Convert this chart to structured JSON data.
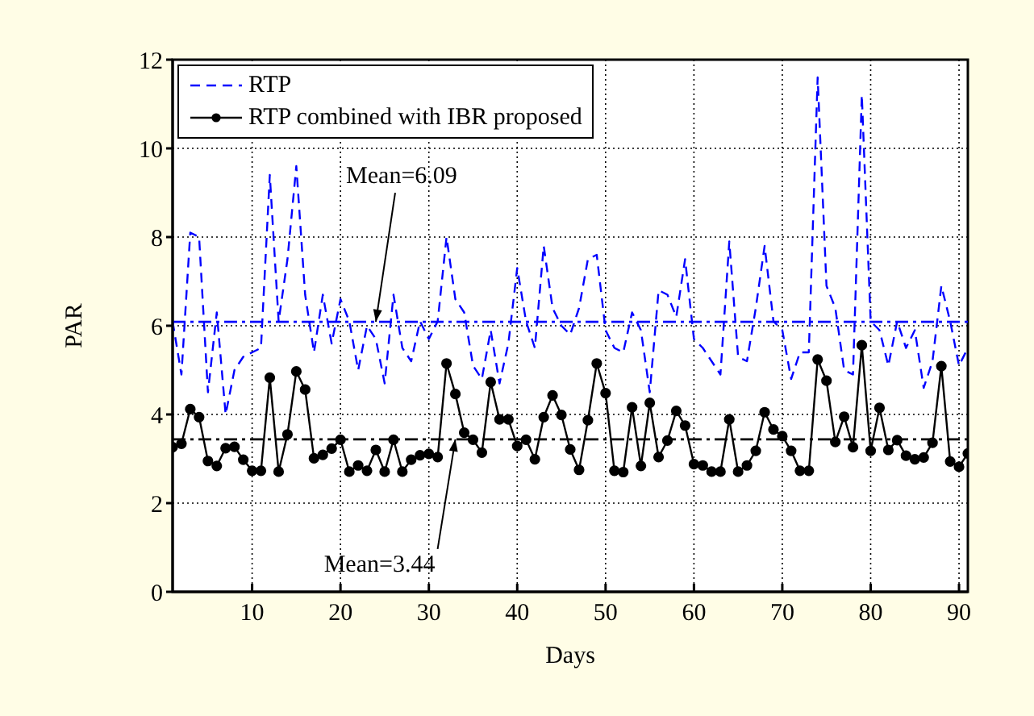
{
  "chart_data": {
    "type": "line",
    "xlabel": "Days",
    "ylabel": "PAR",
    "x": [
      1,
      2,
      3,
      4,
      5,
      6,
      7,
      8,
      9,
      10,
      11,
      12,
      13,
      14,
      15,
      16,
      17,
      18,
      19,
      20,
      21,
      22,
      23,
      24,
      25,
      26,
      27,
      28,
      29,
      30,
      31,
      32,
      33,
      34,
      35,
      36,
      37,
      38,
      39,
      40,
      41,
      42,
      43,
      44,
      45,
      46,
      47,
      48,
      49,
      50,
      51,
      52,
      53,
      54,
      55,
      56,
      57,
      58,
      59,
      60,
      61,
      62,
      63,
      64,
      65,
      66,
      67,
      68,
      69,
      70,
      71,
      72,
      73,
      74,
      75,
      76,
      77,
      78,
      79,
      80,
      81,
      82,
      83,
      84,
      85,
      86,
      87,
      88,
      89,
      90,
      91
    ],
    "series": [
      {
        "name": "RTP",
        "color": "#0000ff",
        "line_style": "dashed",
        "marker": "none",
        "values": [
          6.1,
          4.9,
          8.1,
          8.0,
          4.5,
          6.3,
          4.0,
          5.0,
          5.3,
          5.4,
          5.5,
          9.4,
          6.1,
          7.5,
          9.6,
          6.7,
          5.4,
          6.7,
          5.6,
          6.6,
          6.1,
          5.0,
          6.0,
          5.7,
          4.7,
          6.7,
          5.5,
          5.2,
          6.1,
          5.7,
          6.1,
          8.0,
          6.6,
          6.3,
          5.1,
          4.8,
          5.9,
          4.7,
          5.6,
          7.3,
          6.1,
          5.5,
          7.8,
          6.4,
          6.0,
          5.8,
          6.4,
          7.5,
          7.6,
          5.9,
          5.5,
          5.4,
          6.3,
          5.9,
          4.5,
          6.8,
          6.7,
          6.2,
          7.5,
          5.7,
          5.5,
          5.2,
          4.9,
          7.9,
          5.3,
          5.2,
          6.4,
          7.8,
          6.1,
          5.9,
          4.8,
          5.4,
          5.4,
          11.6,
          6.9,
          6.4,
          5.0,
          4.9,
          11.2,
          6.1,
          5.9,
          5.1,
          6.1,
          5.5,
          5.9,
          4.6,
          5.2,
          6.9,
          6.1,
          5.1,
          5.5
        ]
      },
      {
        "name": "RTP combined with IBR proposed",
        "color": "#000000",
        "line_style": "solid",
        "marker": "circle",
        "values": [
          3.26,
          3.34,
          4.12,
          3.94,
          2.95,
          2.84,
          3.24,
          3.27,
          2.98,
          2.73,
          2.73,
          4.83,
          2.71,
          3.55,
          4.97,
          4.56,
          3.01,
          3.09,
          3.23,
          3.43,
          2.71,
          2.85,
          2.73,
          3.2,
          2.71,
          3.43,
          2.71,
          2.98,
          3.08,
          3.11,
          3.04,
          5.15,
          4.46,
          3.59,
          3.43,
          3.14,
          4.73,
          3.89,
          3.89,
          3.29,
          3.43,
          2.99,
          3.94,
          4.43,
          3.99,
          3.21,
          2.75,
          3.87,
          5.15,
          4.48,
          2.73,
          2.7,
          4.16,
          2.84,
          4.26,
          3.04,
          3.41,
          4.08,
          3.75,
          2.88,
          2.85,
          2.71,
          2.71,
          3.89,
          2.71,
          2.85,
          3.18,
          4.05,
          3.66,
          3.51,
          3.18,
          2.73,
          2.73,
          5.24,
          4.76,
          3.38,
          3.95,
          3.26,
          5.56,
          3.18,
          4.15,
          3.2,
          3.42,
          3.07,
          2.99,
          3.03,
          3.36,
          5.09,
          2.94,
          2.82,
          3.12
        ]
      }
    ],
    "xlim": [
      1,
      91
    ],
    "xticks": [
      10,
      20,
      30,
      40,
      50,
      60,
      70,
      80,
      90
    ],
    "ylim": [
      0,
      12
    ],
    "yticks": [
      0,
      2,
      4,
      6,
      8,
      10,
      12
    ],
    "ref_lines": [
      {
        "axis": "y",
        "value": 6.09,
        "color": "#0000ff"
      },
      {
        "axis": "y",
        "value": 3.44,
        "color": "#000000"
      }
    ],
    "annotations": [
      {
        "text": "Mean=6.09",
        "x": 24,
        "y": 6.09
      },
      {
        "text": "Mean=3.44",
        "x": 33,
        "y": 3.44
      }
    ],
    "grid": true,
    "legend": "top left"
  }
}
